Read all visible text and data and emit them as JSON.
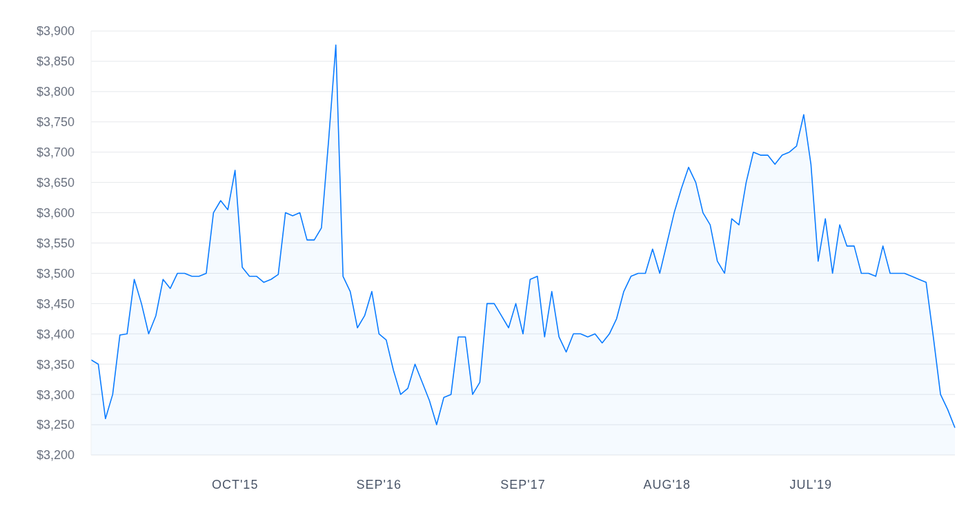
{
  "chart_data": {
    "type": "area",
    "color": "#0a7cff",
    "categories": [
      null,
      null,
      null,
      null,
      null,
      null,
      null,
      null,
      null,
      null,
      null,
      null,
      null,
      null,
      null,
      null,
      null,
      null,
      null,
      null,
      "OCT'15",
      null,
      null,
      null,
      null,
      null,
      null,
      null,
      null,
      null,
      null,
      null,
      null,
      null,
      null,
      null,
      null,
      null,
      null,
      null,
      "SEP'16",
      null,
      null,
      null,
      null,
      null,
      null,
      null,
      null,
      null,
      null,
      null,
      null,
      null,
      null,
      null,
      null,
      null,
      null,
      null,
      "SEP'17",
      null,
      null,
      null,
      null,
      null,
      null,
      null,
      null,
      null,
      null,
      null,
      null,
      null,
      null,
      null,
      null,
      null,
      null,
      null,
      "AUG'18",
      null,
      null,
      null,
      null,
      null,
      null,
      null,
      null,
      null,
      null,
      null,
      null,
      null,
      null,
      null,
      null,
      null,
      null,
      null,
      "JUL'19",
      null,
      null,
      null,
      null,
      null,
      null,
      null,
      null,
      null,
      null,
      null,
      null,
      null,
      null,
      null,
      null,
      null,
      null,
      null,
      null
    ],
    "values": [
      3357,
      3350,
      3260,
      3300,
      3398,
      3400,
      3490,
      3450,
      3400,
      3430,
      3490,
      3475,
      3500,
      3500,
      3495,
      3495,
      3500,
      3600,
      3620,
      3605,
      3670,
      3510,
      3495,
      3495,
      3485,
      3490,
      3498,
      3600,
      3595,
      3600,
      3555,
      3555,
      3575,
      3720,
      3877,
      3495,
      3470,
      3410,
      3430,
      3470,
      3400,
      3390,
      3340,
      3300,
      3310,
      3350,
      3320,
      3290,
      3250,
      3295,
      3300,
      3395,
      3395,
      3300,
      3320,
      3450,
      3450,
      3430,
      3410,
      3450,
      3400,
      3490,
      3495,
      3395,
      3470,
      3395,
      3370,
      3400,
      3400,
      3395,
      3400,
      3385,
      3400,
      3425,
      3470,
      3495,
      3500,
      3500,
      3540,
      3500,
      3550,
      3600,
      3640,
      3675,
      3650,
      3600,
      3580,
      3520,
      3500,
      3590,
      3580,
      3650,
      3700,
      3695,
      3695,
      3680,
      3695,
      3700,
      3710,
      3762,
      3680,
      3520,
      3590,
      3500,
      3580,
      3545,
      3545,
      3500,
      3500,
      3495,
      3545,
      3500,
      3500,
      3500,
      3495,
      3490,
      3485,
      3395,
      3300,
      3275,
      3245
    ],
    "ylim": [
      3200,
      3900
    ],
    "yticks": [
      {
        "value": 3200,
        "label": "$3,200"
      },
      {
        "value": 3250,
        "label": "$3,250"
      },
      {
        "value": 3300,
        "label": "$3,300"
      },
      {
        "value": 3350,
        "label": "$3,350"
      },
      {
        "value": 3400,
        "label": "$3,400"
      },
      {
        "value": 3450,
        "label": "$3,450"
      },
      {
        "value": 3500,
        "label": "$3,500"
      },
      {
        "value": 3550,
        "label": "$3,550"
      },
      {
        "value": 3600,
        "label": "$3,600"
      },
      {
        "value": 3650,
        "label": "$3,650"
      },
      {
        "value": 3700,
        "label": "$3,700"
      },
      {
        "value": 3750,
        "label": "$3,750"
      },
      {
        "value": 3800,
        "label": "$3,800"
      },
      {
        "value": 3850,
        "label": "$3,850"
      },
      {
        "value": 3900,
        "label": "$3,900"
      }
    ],
    "grid": "y",
    "marker": "none"
  }
}
